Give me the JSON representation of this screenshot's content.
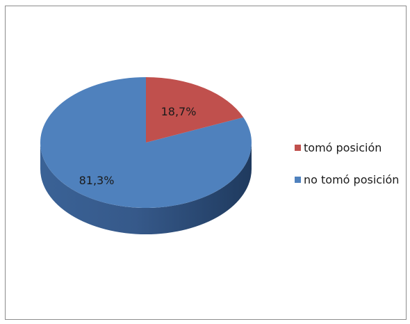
{
  "chart_data": {
    "type": "pie",
    "title": "",
    "style": "3d",
    "legend_position": "right",
    "slices": [
      {
        "label": "tomó posición",
        "value": 18.7,
        "display": "18,7%",
        "color": "#c0504d"
      },
      {
        "label": "no tomó posición",
        "value": 81.3,
        "display": "81,3%",
        "color": "#4f81bd"
      }
    ]
  }
}
